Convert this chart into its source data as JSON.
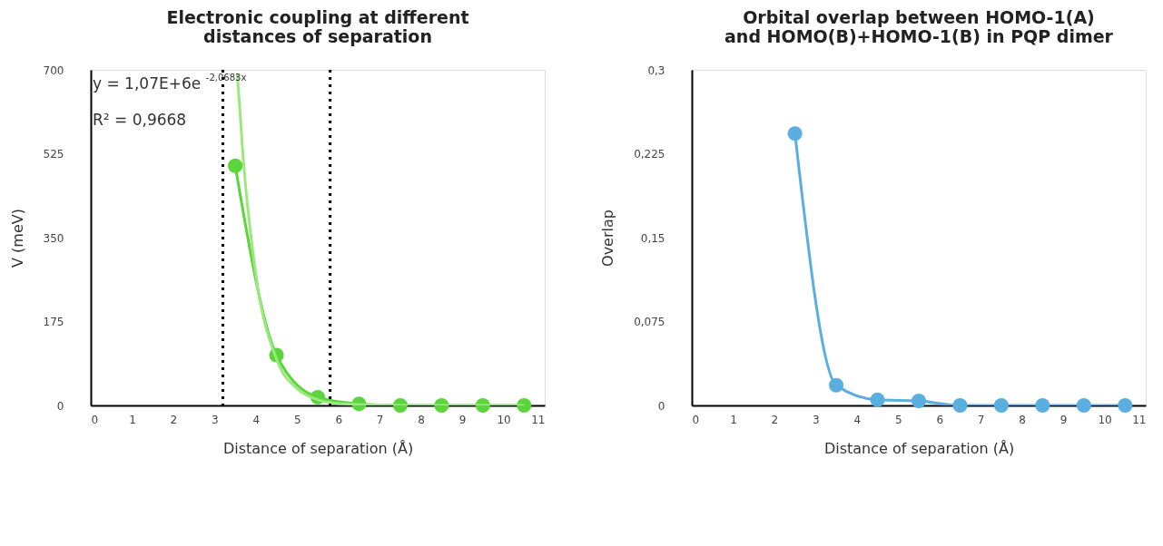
{
  "chart_data": [
    {
      "type": "line",
      "title": "Electronic coupling at different distances of separation",
      "xlabel": "Distance of separation (Å)",
      "ylabel": "V (meV)",
      "xlim": [
        0,
        11
      ],
      "xticks": [
        0,
        1,
        2,
        3,
        4,
        5,
        6,
        7,
        8,
        9,
        10,
        11
      ],
      "ylim": [
        0,
        700
      ],
      "yticks": [
        0,
        175,
        350,
        525,
        700
      ],
      "grid": false,
      "series": [
        {
          "color": "#5cd43c",
          "marker": "circle",
          "x": [
            3.5,
            4.5,
            5.5,
            6.5,
            7.5,
            8.5,
            9.5,
            10.5
          ],
          "values": [
            500,
            105,
            17,
            3,
            0,
            0,
            0,
            0
          ]
        },
        {
          "color": "#9be87f",
          "marker": "none",
          "x": [
            3.55,
            3.7,
            4.0,
            4.5,
            5.0,
            5.5,
            6.0,
            7.0,
            8.0,
            9.0,
            10.5
          ],
          "values": [
            692,
            508,
            273,
            97,
            35,
            12,
            4,
            1,
            0,
            0,
            0
          ]
        }
      ],
      "ref_lines": [
        {
          "axis": "x",
          "value": 3.2,
          "color": "#000000",
          "line_style": "dotted"
        },
        {
          "axis": "x",
          "value": 5.8,
          "color": "#000000",
          "line_style": "dotted"
        }
      ],
      "annotations": [
        "y = 1,07E+6e$^{-2,0683x}$",
        "R² = 0,9668"
      ]
    },
    {
      "type": "line",
      "title": "Orbital overlap between HOMO-1(A) and HOMO(B)+HOMO-1(B) in PQP dimer",
      "xlabel": "Distance of separation (Å)",
      "ylabel": "Overlap",
      "xlim": [
        0,
        11
      ],
      "xticks": [
        0,
        1,
        2,
        3,
        4,
        5,
        6,
        7,
        8,
        9,
        10,
        11
      ],
      "ylim": [
        0,
        0.3
      ],
      "yticks": [
        0,
        {
          "value": 0.075,
          "label": "0,075"
        },
        {
          "value": 0.15,
          "label": "0,15"
        },
        {
          "value": 0.225,
          "label": "0,225"
        },
        {
          "value": 0.3,
          "label": "0,3"
        }
      ],
      "grid": false,
      "series": [
        {
          "color": "#5aafe0",
          "marker": "circle",
          "x": [
            2.5,
            3.5,
            4.5,
            5.5,
            6.5,
            7.5,
            8.5,
            9.5,
            10.5
          ],
          "values": [
            0.243,
            0.018,
            0.005,
            0.004,
            0,
            0,
            0,
            0,
            0
          ]
        }
      ]
    }
  ]
}
